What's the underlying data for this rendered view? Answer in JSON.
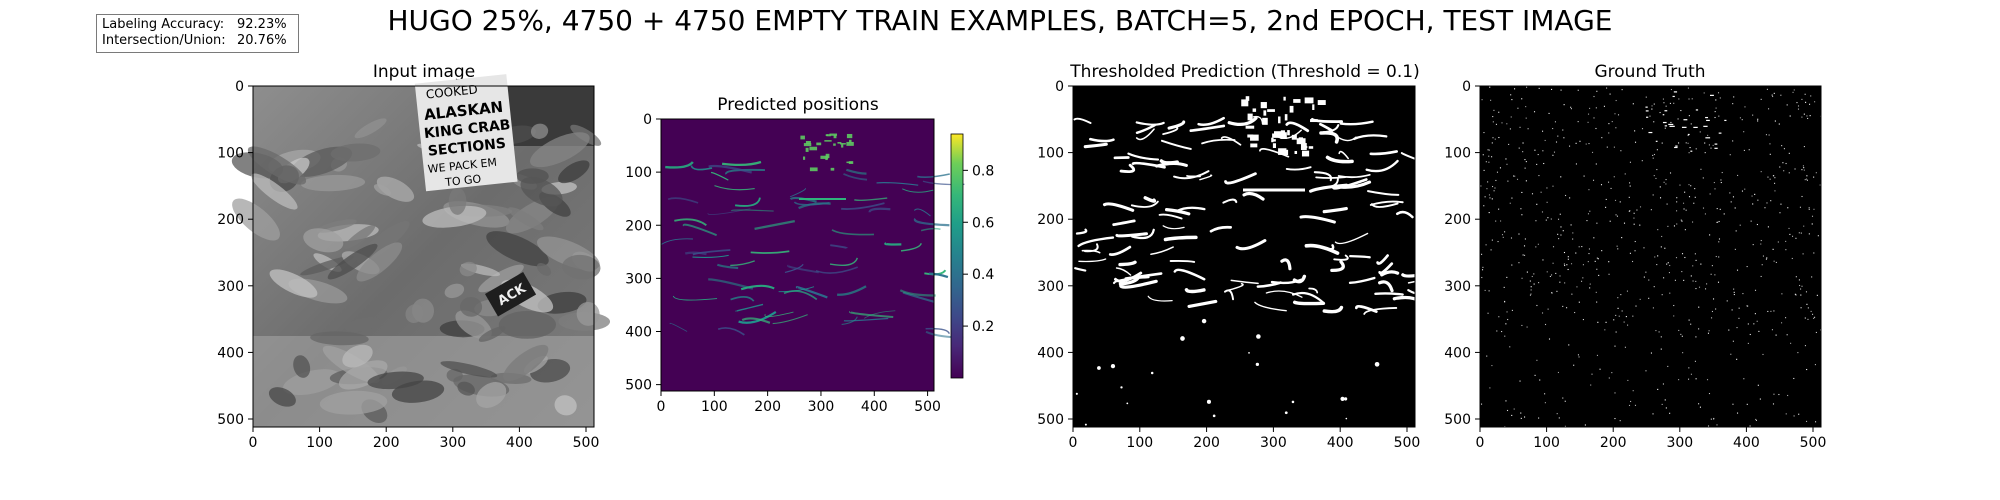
{
  "figure": {
    "title": "HUGO 25%, 4750 + 4750 EMPTY TRAIN EXAMPLES, BATCH=5, 2nd EPOCH, TEST IMAGE"
  },
  "metrics": {
    "accuracy_label": "Labeling Accuracy:",
    "accuracy_value": "92.23%",
    "iou_label": "Intersection/Union:",
    "iou_value": "20.76%"
  },
  "panel_labels": {
    "sign_line1": "COOKED",
    "sign_line2": "ALASKAN",
    "sign_line3": "KING CRAB",
    "sign_line4": "SECTIONS",
    "sign_line5": "WE PACK EM",
    "sign_line6": "TO GO",
    "tag": "ACK"
  },
  "colors": {
    "viridis_low": "#440154",
    "viridis_mid": "#21918c",
    "viridis_high": "#fde725",
    "mask_on": "#ffffff",
    "mask_off": "#000000"
  },
  "chart_data": [
    {
      "type": "heatmap",
      "title": "Input image",
      "colormap": "gray",
      "xticks": [
        0,
        100,
        200,
        300,
        400,
        500
      ],
      "yticks": [
        0,
        100,
        200,
        300,
        400,
        500
      ],
      "xlim": [
        0,
        512
      ],
      "ylim": [
        512,
        0
      ]
    },
    {
      "type": "heatmap",
      "title": "Predicted positions",
      "colormap": "viridis",
      "xticks": [
        0,
        100,
        200,
        300,
        400,
        500
      ],
      "yticks": [
        0,
        100,
        200,
        300,
        400,
        500
      ],
      "xlim": [
        0,
        512
      ],
      "ylim": [
        512,
        0
      ],
      "colorbar": {
        "ticks": [
          0.2,
          0.4,
          0.6,
          0.8
        ],
        "range": [
          0.0,
          0.94
        ]
      }
    },
    {
      "type": "heatmap",
      "title": "Thresholded Prediction (Threshold = 0.1)",
      "colormap": "binary",
      "threshold": 0.1,
      "xticks": [
        0,
        100,
        200,
        300,
        400,
        500
      ],
      "yticks": [
        0,
        100,
        200,
        300,
        400,
        500
      ],
      "xlim": [
        0,
        512
      ],
      "ylim": [
        512,
        0
      ]
    },
    {
      "type": "heatmap",
      "title": "Ground Truth",
      "colormap": "binary",
      "xticks": [
        0,
        100,
        200,
        300,
        400,
        500
      ],
      "yticks": [
        0,
        100,
        200,
        300,
        400,
        500
      ],
      "xlim": [
        0,
        512
      ],
      "ylim": [
        512,
        0
      ]
    }
  ]
}
